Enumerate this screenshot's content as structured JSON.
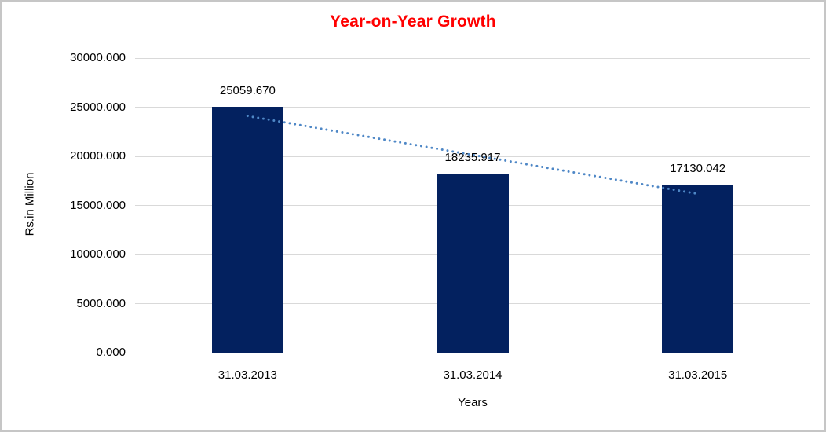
{
  "title": {
    "text": "Year-on-Year Growth",
    "color": "#ff0000"
  },
  "chart_data": {
    "type": "bar",
    "title": "Year-on-Year Growth",
    "categories": [
      "31.03.2013",
      "31.03.2014",
      "31.03.2015"
    ],
    "values": [
      25059.67,
      18235.917,
      17130.042
    ],
    "value_labels": [
      "25059.670",
      "18235.917",
      "17130.042"
    ],
    "xlabel": "Years",
    "ylabel": "Rs.in Million",
    "ylim": [
      0,
      30000
    ],
    "ytick_step": 5000,
    "ytick_labels": [
      "0.000",
      "5000.000",
      "10000.000",
      "15000.000",
      "20000.000",
      "25000.000",
      "30000.000"
    ],
    "grid": "horizontal",
    "legend": "none",
    "bar_color": "#03215f",
    "gridline_color": "#d9d9d9",
    "trendline": {
      "type": "linear",
      "style": "dotted",
      "color": "#4e87c6"
    }
  }
}
